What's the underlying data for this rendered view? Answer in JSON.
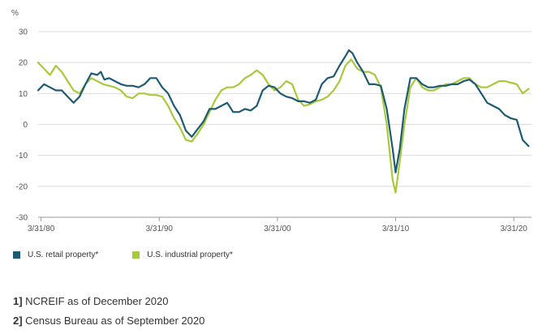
{
  "chart_data": {
    "type": "line",
    "title": "",
    "xlabel": "",
    "ylabel": "%",
    "ylim": [
      -30,
      30
    ],
    "yticks": [
      30,
      20,
      10,
      0,
      -10,
      -20,
      -30
    ],
    "xlim": [
      1980.0,
      2021.75
    ],
    "xticks": [
      {
        "label": "3/31/80",
        "value": 1980.25
      },
      {
        "label": "3/31/90",
        "value": 1990.25
      },
      {
        "label": "3/31/00",
        "value": 2000.25
      },
      {
        "label": "3/31/10",
        "value": 2010.25
      },
      {
        "label": "3/31/20",
        "value": 2020.25
      }
    ],
    "grid": "horizontal",
    "legend_position": "bottom-left",
    "series": [
      {
        "name": "U.S. retail property*",
        "color": "#1d5a73",
        "points": [
          [
            1980.0,
            11
          ],
          [
            1980.5,
            13
          ],
          [
            1981.0,
            12
          ],
          [
            1981.5,
            11
          ],
          [
            1982.0,
            11
          ],
          [
            1982.5,
            9
          ],
          [
            1983.0,
            7
          ],
          [
            1983.5,
            9
          ],
          [
            1984.0,
            13
          ],
          [
            1984.5,
            16.5
          ],
          [
            1985.0,
            16
          ],
          [
            1985.3,
            17
          ],
          [
            1985.6,
            14.5
          ],
          [
            1986.0,
            15
          ],
          [
            1986.5,
            14
          ],
          [
            1987.0,
            13
          ],
          [
            1987.5,
            12.5
          ],
          [
            1988.0,
            12.5
          ],
          [
            1988.5,
            12
          ],
          [
            1989.0,
            13
          ],
          [
            1989.5,
            15
          ],
          [
            1990.0,
            15
          ],
          [
            1990.5,
            12
          ],
          [
            1991.0,
            10
          ],
          [
            1991.5,
            6
          ],
          [
            1992.0,
            3
          ],
          [
            1992.5,
            -2
          ],
          [
            1993.0,
            -4
          ],
          [
            1993.5,
            -1.5
          ],
          [
            1994.0,
            1
          ],
          [
            1994.5,
            5
          ],
          [
            1995.0,
            5
          ],
          [
            1995.5,
            6
          ],
          [
            1996.0,
            7
          ],
          [
            1996.5,
            4
          ],
          [
            1997.0,
            4
          ],
          [
            1997.5,
            5
          ],
          [
            1998.0,
            4.5
          ],
          [
            1998.5,
            6
          ],
          [
            1999.0,
            11
          ],
          [
            1999.5,
            12.5
          ],
          [
            2000.0,
            12
          ],
          [
            2000.5,
            10
          ],
          [
            2001.0,
            9
          ],
          [
            2001.5,
            8.5
          ],
          [
            2002.0,
            7.5
          ],
          [
            2002.5,
            7.5
          ],
          [
            2003.0,
            7
          ],
          [
            2003.5,
            8
          ],
          [
            2004.0,
            13
          ],
          [
            2004.5,
            15
          ],
          [
            2005.0,
            15.5
          ],
          [
            2005.5,
            19
          ],
          [
            2006.0,
            22
          ],
          [
            2006.3,
            24
          ],
          [
            2006.6,
            23
          ],
          [
            2007.0,
            20
          ],
          [
            2007.5,
            17
          ],
          [
            2008.0,
            13
          ],
          [
            2008.5,
            13
          ],
          [
            2009.0,
            12.5
          ],
          [
            2009.5,
            5
          ],
          [
            2010.0,
            -8
          ],
          [
            2010.25,
            -15.5
          ],
          [
            2010.6,
            -8
          ],
          [
            2011.0,
            5
          ],
          [
            2011.5,
            15
          ],
          [
            2012.0,
            15
          ],
          [
            2012.5,
            13
          ],
          [
            2013.0,
            12
          ],
          [
            2013.5,
            12
          ],
          [
            2014.0,
            12.5
          ],
          [
            2014.5,
            12.5
          ],
          [
            2015.0,
            13
          ],
          [
            2015.5,
            13
          ],
          [
            2016.0,
            14
          ],
          [
            2016.5,
            14.5
          ],
          [
            2017.0,
            13
          ],
          [
            2017.5,
            10
          ],
          [
            2018.0,
            7
          ],
          [
            2018.5,
            6
          ],
          [
            2019.0,
            5
          ],
          [
            2019.5,
            3
          ],
          [
            2020.0,
            2
          ],
          [
            2020.5,
            1.5
          ],
          [
            2021.0,
            -5
          ],
          [
            2021.5,
            -7
          ]
        ]
      },
      {
        "name": "U.S. industrial property*",
        "color": "#a8c93b",
        "points": [
          [
            1980.0,
            20
          ],
          [
            1980.5,
            18
          ],
          [
            1981.0,
            16
          ],
          [
            1981.5,
            19
          ],
          [
            1982.0,
            17
          ],
          [
            1982.5,
            14
          ],
          [
            1983.0,
            11
          ],
          [
            1983.5,
            10
          ],
          [
            1984.0,
            13
          ],
          [
            1984.5,
            15
          ],
          [
            1985.0,
            14
          ],
          [
            1985.5,
            13
          ],
          [
            1986.0,
            12.5
          ],
          [
            1986.5,
            12
          ],
          [
            1987.0,
            11
          ],
          [
            1987.5,
            9
          ],
          [
            1988.0,
            8.5
          ],
          [
            1988.5,
            10
          ],
          [
            1989.0,
            10
          ],
          [
            1989.5,
            9.5
          ],
          [
            1990.0,
            9.5
          ],
          [
            1990.5,
            9
          ],
          [
            1991.0,
            6
          ],
          [
            1991.5,
            2
          ],
          [
            1992.0,
            -1
          ],
          [
            1992.5,
            -5
          ],
          [
            1993.0,
            -5.5
          ],
          [
            1993.5,
            -3
          ],
          [
            1994.0,
            0
          ],
          [
            1994.5,
            4
          ],
          [
            1995.0,
            8
          ],
          [
            1995.5,
            11
          ],
          [
            1996.0,
            12
          ],
          [
            1996.5,
            12
          ],
          [
            1997.0,
            13
          ],
          [
            1997.5,
            15
          ],
          [
            1998.0,
            16
          ],
          [
            1998.5,
            17.5
          ],
          [
            1999.0,
            16
          ],
          [
            1999.5,
            13
          ],
          [
            2000.0,
            11
          ],
          [
            2000.5,
            12
          ],
          [
            2001.0,
            14
          ],
          [
            2001.5,
            13
          ],
          [
            2002.0,
            8
          ],
          [
            2002.5,
            6
          ],
          [
            2003.0,
            6.5
          ],
          [
            2003.5,
            7.5
          ],
          [
            2004.0,
            8
          ],
          [
            2004.5,
            9
          ],
          [
            2005.0,
            11
          ],
          [
            2005.5,
            14
          ],
          [
            2006.0,
            19
          ],
          [
            2006.5,
            21
          ],
          [
            2007.0,
            18
          ],
          [
            2007.5,
            17
          ],
          [
            2008.0,
            17
          ],
          [
            2008.5,
            16
          ],
          [
            2009.0,
            12
          ],
          [
            2009.5,
            0
          ],
          [
            2010.0,
            -18
          ],
          [
            2010.25,
            -22
          ],
          [
            2010.6,
            -12
          ],
          [
            2011.0,
            0
          ],
          [
            2011.5,
            12
          ],
          [
            2012.0,
            15
          ],
          [
            2012.5,
            12
          ],
          [
            2013.0,
            11
          ],
          [
            2013.5,
            11
          ],
          [
            2014.0,
            12
          ],
          [
            2014.5,
            13
          ],
          [
            2015.0,
            13
          ],
          [
            2015.5,
            14
          ],
          [
            2016.0,
            15
          ],
          [
            2016.5,
            15
          ],
          [
            2017.0,
            13
          ],
          [
            2017.5,
            12
          ],
          [
            2018.0,
            12
          ],
          [
            2018.5,
            13
          ],
          [
            2019.0,
            14
          ],
          [
            2019.5,
            14
          ],
          [
            2020.0,
            13.5
          ],
          [
            2020.5,
            13
          ],
          [
            2021.0,
            10
          ],
          [
            2021.5,
            11.5
          ]
        ]
      }
    ]
  },
  "notes": [
    {
      "num": "1]",
      "text": " NCREIF as of December 2020"
    },
    {
      "num": "2]",
      "text": " Census Bureau as of September 2020"
    }
  ]
}
